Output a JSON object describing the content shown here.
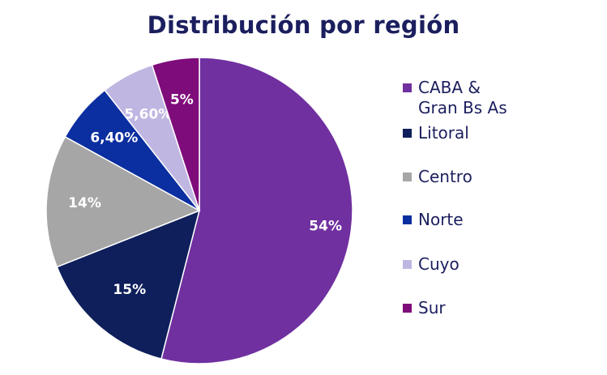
{
  "chart_data": {
    "type": "pie",
    "title": "Distribución por región",
    "legend_position": "right",
    "slices": [
      {
        "label": "CABA &\nGran Bs As",
        "value": 54,
        "value_label": "54%",
        "color": "#7030a0"
      },
      {
        "label": " Litoral",
        "value": 15,
        "value_label": "15%",
        "color": "#0e1f5b"
      },
      {
        "label": "Centro",
        "value": 14,
        "value_label": "14%",
        "color": "#a6a6a6"
      },
      {
        "label": "Norte",
        "value": 6.4,
        "value_label": "6,40%",
        "color": "#0b2fa0"
      },
      {
        "label": "Cuyo",
        "value": 5.6,
        "value_label": "5,60%",
        "color": "#c0b6e2"
      },
      {
        "label": "Sur",
        "value": 5,
        "value_label": "5%",
        "color": "#7f0c7b"
      }
    ]
  }
}
